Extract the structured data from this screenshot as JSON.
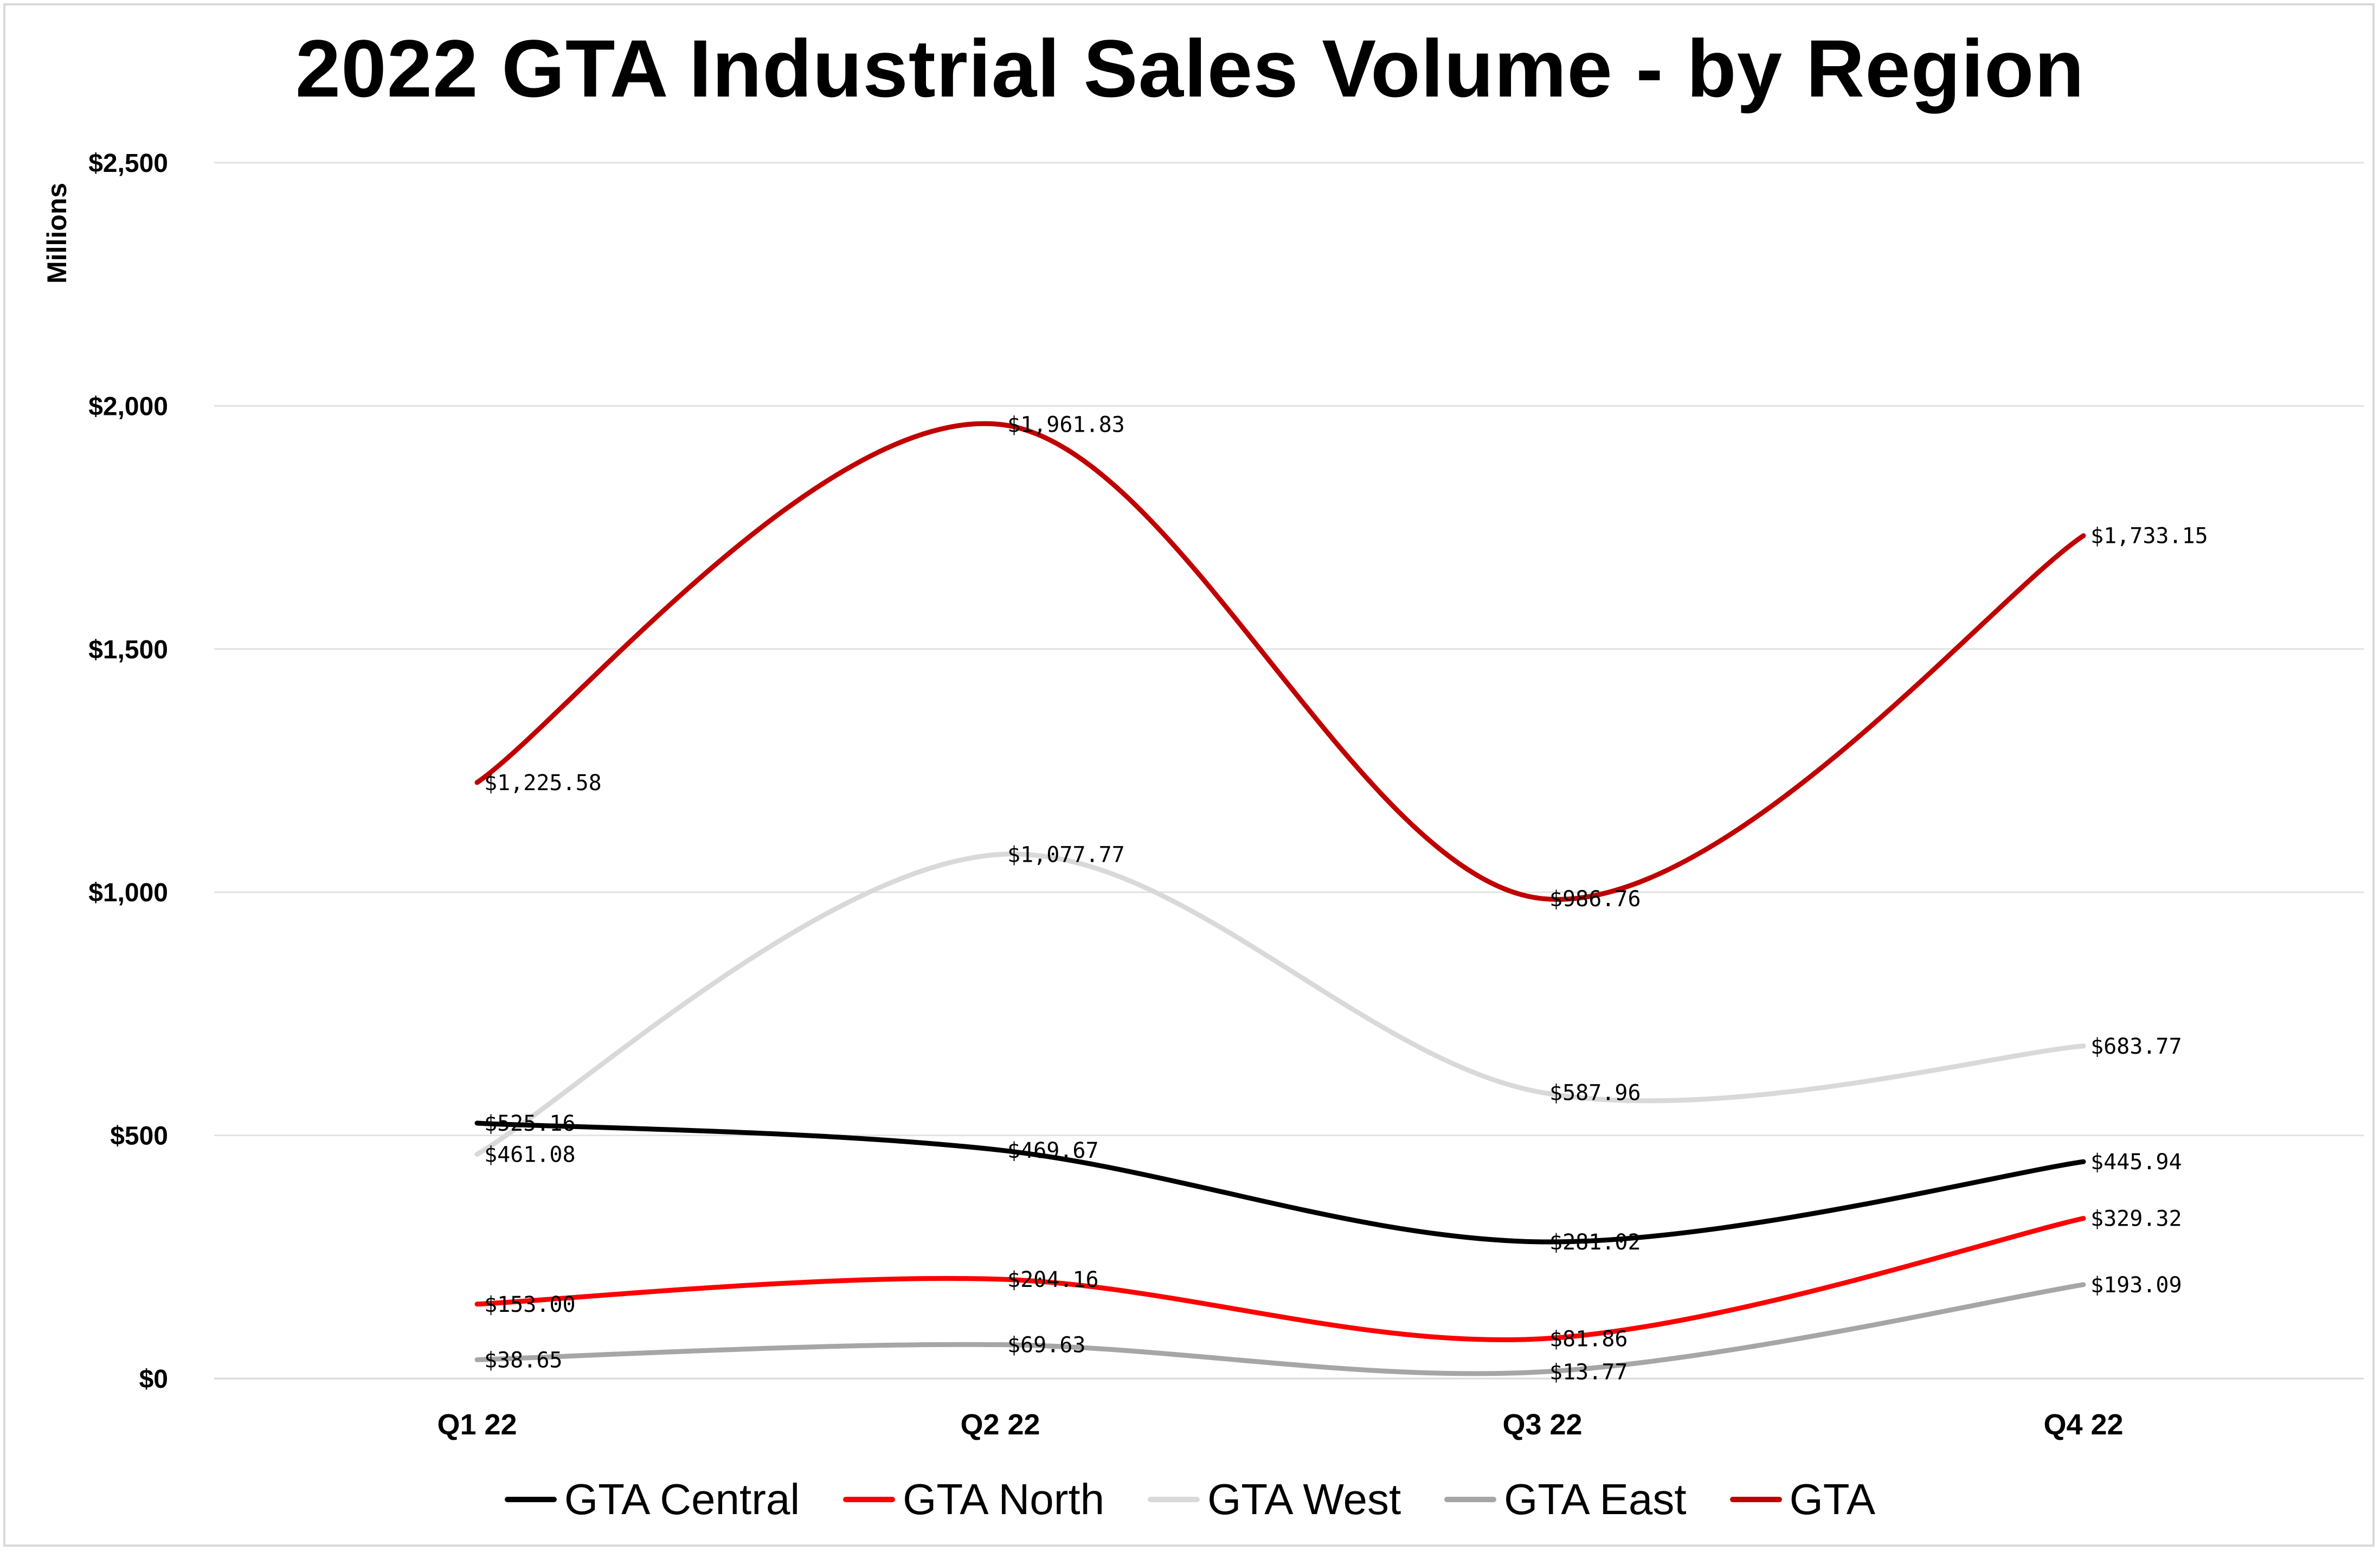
{
  "chart_data": {
    "type": "line",
    "title": "2022 GTA Industrial Sales Volume - by Region",
    "ylabel": "Millions",
    "xlabel": "",
    "categories": [
      "Q1 22",
      "Q2 22",
      "Q3 22",
      "Q4 22"
    ],
    "ylim": [
      0,
      2500
    ],
    "yticks": [
      0,
      500,
      1000,
      1500,
      2000,
      2500
    ],
    "ytick_labels": [
      "$0",
      "$500",
      "$1,000",
      "$1,500",
      "$2,000",
      "$2,500"
    ],
    "grid": "horizontal",
    "smoothed": true,
    "legend_position": "bottom",
    "series": [
      {
        "name": "GTA Central",
        "color": "#000000",
        "values": [
          525.16,
          469.67,
          281.02,
          445.94
        ],
        "labels": [
          "$525.16",
          "$469.67",
          "$281.02",
          "$445.94"
        ]
      },
      {
        "name": "GTA North",
        "color": "#ff0000",
        "values": [
          153.0,
          204.16,
          81.86,
          329.32
        ],
        "labels": [
          "$153.00",
          "$204.16",
          "$81.86",
          "$329.32"
        ]
      },
      {
        "name": "GTA West",
        "color": "#d9d9d9",
        "values": [
          461.08,
          1077.77,
          587.96,
          683.77
        ],
        "labels": [
          "$461.08",
          "$1,077.77",
          "$587.96",
          "$683.77"
        ]
      },
      {
        "name": "GTA East",
        "color": "#a6a6a6",
        "values": [
          38.65,
          69.63,
          13.77,
          193.09
        ],
        "labels": [
          "$38.65",
          "$69.63",
          "$13.77",
          "$193.09"
        ]
      },
      {
        "name": "GTA",
        "color": "#c00000",
        "values": [
          1225.58,
          1961.83,
          986.76,
          1733.15
        ],
        "labels": [
          "$1,225.58",
          "$1,961.83",
          "$986.76",
          "$1,733.15"
        ]
      }
    ]
  }
}
